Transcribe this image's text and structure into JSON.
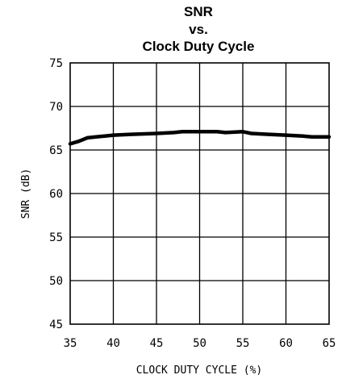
{
  "chart_data": {
    "type": "line",
    "title_lines": [
      "SNR",
      "vs.",
      "Clock Duty Cycle"
    ],
    "xlabel": "CLOCK DUTY CYCLE (%)",
    "ylabel": "SNR (dB)",
    "xlim": [
      35,
      65
    ],
    "ylim": [
      45,
      75
    ],
    "x_ticks": [
      35,
      40,
      45,
      50,
      55,
      60,
      65
    ],
    "y_ticks": [
      45,
      50,
      55,
      60,
      65,
      70,
      75
    ],
    "grid": true,
    "line_color": "#000000",
    "series": [
      {
        "x": [
          35,
          36,
          37,
          38,
          39,
          40,
          42,
          45,
          47,
          48,
          50,
          52,
          53,
          55,
          56,
          58,
          60,
          62,
          63,
          65
        ],
        "y": [
          65.7,
          66.0,
          66.4,
          66.5,
          66.6,
          66.7,
          66.8,
          66.9,
          67.0,
          67.1,
          67.1,
          67.1,
          67.0,
          67.1,
          66.9,
          66.8,
          66.7,
          66.6,
          66.5,
          66.5
        ]
      }
    ]
  }
}
